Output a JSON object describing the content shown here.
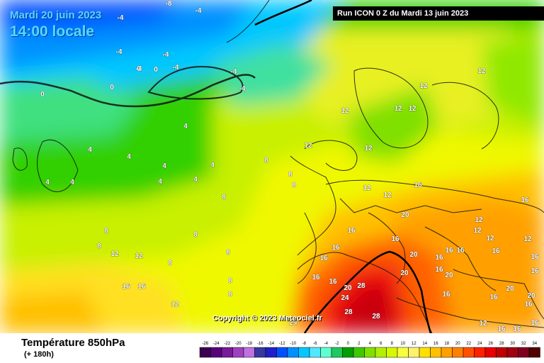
{
  "header": {
    "date": "Mardi 20 juin 2023",
    "time": "14:00 locale",
    "run": "Run ICON 0 Z du Mardi 13 juin 2023"
  },
  "copyright": "Copyright © 2023 Meteociel.fr",
  "footer": {
    "variable": "Température 850hPa",
    "lead": "(+ 180h)"
  },
  "legend": {
    "ticks": [
      "-26",
      "-24",
      "-22",
      "-20",
      "-18",
      "-16",
      "-14",
      "-12",
      "-10",
      "-8",
      "-6",
      "-4",
      "-2",
      "0",
      "2",
      "4",
      "6",
      "8",
      "10",
      "12",
      "14",
      "16",
      "18",
      "20",
      "22",
      "24",
      "26",
      "28",
      "30",
      "32",
      "34"
    ],
    "colors": [
      "#3b0050",
      "#5a007a",
      "#7a1a9c",
      "#a040c0",
      "#c070e0",
      "#3838a0",
      "#2020c8",
      "#0050ff",
      "#0090ff",
      "#00c8ff",
      "#50e8ff",
      "#60ffd0",
      "#20c860",
      "#00a000",
      "#40c800",
      "#80e000",
      "#b0f000",
      "#d8f800",
      "#f8ff40",
      "#fff070",
      "#ffe000",
      "#ffc000",
      "#ffa000",
      "#ff8000",
      "#ff5000",
      "#ff2000",
      "#e80000",
      "#c00000",
      "#a00010",
      "#800020",
      "#500000"
    ]
  },
  "map_labels": [
    {
      "t": "-8",
      "c": "w"
    },
    {
      "t": "-4",
      "c": "w"
    },
    {
      "t": "-4",
      "c": "w"
    },
    {
      "t": "-4",
      "c": "w"
    },
    {
      "t": "-4",
      "c": "w"
    },
    {
      "t": "-4",
      "c": "w"
    },
    {
      "t": "0",
      "c": "w"
    },
    {
      "t": "0",
      "c": "w"
    },
    {
      "t": "-4",
      "c": "w"
    },
    {
      "t": "-4",
      "c": "w"
    },
    {
      "t": "0",
      "c": "w"
    },
    {
      "t": "-4",
      "c": "w"
    },
    {
      "t": "0",
      "c": "w"
    },
    {
      "t": "4",
      "c": "w"
    },
    {
      "t": "4",
      "c": "w"
    },
    {
      "t": "4",
      "c": "w"
    },
    {
      "t": "4",
      "c": "w"
    },
    {
      "t": "4",
      "c": "w"
    },
    {
      "t": "4",
      "c": "w"
    },
    {
      "t": "4",
      "c": "w"
    },
    {
      "t": "4",
      "c": "w"
    },
    {
      "t": "4",
      "c": "w"
    },
    {
      "t": "8",
      "c": "w"
    },
    {
      "t": "8",
      "c": "w"
    },
    {
      "t": "8",
      "c": "w"
    },
    {
      "t": "8",
      "c": "w"
    },
    {
      "t": "8",
      "c": "w"
    },
    {
      "t": "8",
      "c": "w"
    },
    {
      "t": "8",
      "c": "w"
    },
    {
      "t": "8",
      "c": "w"
    },
    {
      "t": "12",
      "c": "w"
    },
    {
      "t": "12",
      "c": "w"
    },
    {
      "t": "12",
      "c": "w"
    },
    {
      "t": "12",
      "c": "w"
    },
    {
      "t": "12",
      "c": "w"
    },
    {
      "t": "12",
      "c": "w"
    },
    {
      "t": "12",
      "c": "w"
    },
    {
      "t": "12",
      "c": "w"
    },
    {
      "t": "12",
      "c": "w"
    },
    {
      "t": "12",
      "c": "w"
    },
    {
      "t": "12",
      "c": "w"
    },
    {
      "t": "12",
      "c": "w"
    },
    {
      "t": "12",
      "c": "w"
    },
    {
      "t": "16",
      "c": "w"
    },
    {
      "t": "16",
      "c": "w"
    },
    {
      "t": "16",
      "c": "w"
    },
    {
      "t": "16",
      "c": "w"
    },
    {
      "t": "16",
      "c": "w"
    },
    {
      "t": "16",
      "c": "w"
    },
    {
      "t": "16",
      "c": "w"
    },
    {
      "t": "16",
      "c": "w"
    },
    {
      "t": "16",
      "c": "w"
    },
    {
      "t": "16",
      "c": "w"
    },
    {
      "t": "16",
      "c": "w"
    },
    {
      "t": "16",
      "c": "w"
    },
    {
      "t": "16",
      "c": "w"
    },
    {
      "t": "16",
      "c": "w"
    },
    {
      "t": "16",
      "c": "w"
    },
    {
      "t": "16",
      "c": "w"
    },
    {
      "t": "16",
      "c": "w"
    },
    {
      "t": "16",
      "c": "w"
    },
    {
      "t": "16",
      "c": "w"
    },
    {
      "t": "16",
      "c": "w"
    },
    {
      "t": "20",
      "c": "w"
    },
    {
      "t": "20",
      "c": "w"
    },
    {
      "t": "20",
      "c": "w"
    },
    {
      "t": "20",
      "c": "w"
    },
    {
      "t": "20",
      "c": "w"
    },
    {
      "t": "20",
      "c": "w"
    },
    {
      "t": "20",
      "c": "w"
    },
    {
      "t": "24",
      "c": "w"
    },
    {
      "t": "24",
      "c": "w"
    },
    {
      "t": "28",
      "c": "w"
    },
    {
      "t": "28",
      "c": "w"
    },
    {
      "t": "28",
      "c": "w"
    },
    {
      "t": "8",
      "c": "w"
    },
    {
      "t": "8",
      "c": "w"
    },
    {
      "t": "8",
      "c": "w"
    },
    {
      "t": "16",
      "c": "w"
    },
    {
      "t": "16",
      "c": "w"
    },
    {
      "t": "12",
      "c": "w"
    },
    {
      "t": "12",
      "c": "w"
    },
    {
      "t": "12",
      "c": "w"
    },
    {
      "t": "12",
      "c": "w"
    },
    {
      "t": "16",
      "c": "w"
    }
  ]
}
